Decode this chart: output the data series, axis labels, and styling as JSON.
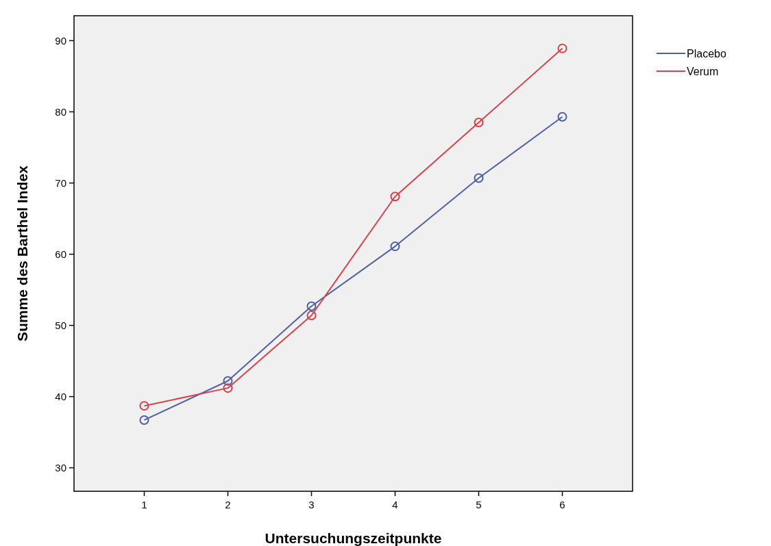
{
  "chart_data": {
    "type": "line",
    "xlabel": "Untersuchungszeitpunkte",
    "ylabel": "Summe des Barthel Index",
    "x": [
      1,
      2,
      3,
      4,
      5,
      6
    ],
    "series": [
      {
        "name": "Placebo",
        "color": "#4e5fa8",
        "values": [
          36.7,
          42.2,
          52.7,
          61.1,
          70.7,
          79.3
        ]
      },
      {
        "name": "Verum",
        "color": "#d9404a",
        "values": [
          38.7,
          41.2,
          51.4,
          68.1,
          78.5,
          88.9
        ]
      }
    ],
    "xlim": [
      0.16,
      6.84
    ],
    "xticks": [
      1,
      2,
      3,
      4,
      5,
      6
    ],
    "ylim": [
      26.7,
      93.5
    ],
    "yticks": [
      30,
      40,
      50,
      60,
      70,
      80,
      90
    ],
    "marker": "circle",
    "line_style": "solid",
    "legend": "top right",
    "grid": false
  }
}
